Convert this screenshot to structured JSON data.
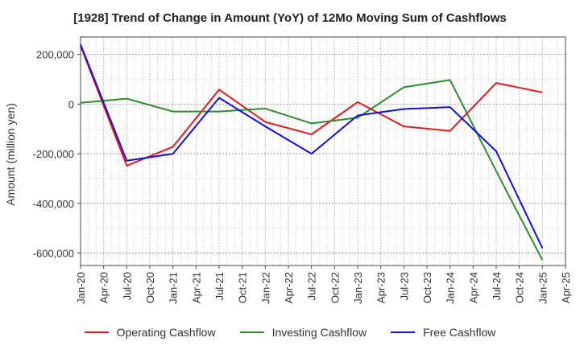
{
  "chart_data": {
    "type": "line",
    "title": "[1928]  Trend of Change in Amount (YoY) of 12Mo Moving Sum of Cashflows",
    "ylabel": "Amount (million yen)",
    "xlabel": "",
    "ylim": [
      -650000,
      270000
    ],
    "yticks": [
      200000,
      0,
      -200000,
      -400000,
      -600000
    ],
    "ytick_labels": [
      "200,000",
      "0",
      "-200,000",
      "-400,000",
      "-600,000"
    ],
    "x_tick_labels": [
      "Jan-20",
      "Apr-20",
      "Jul-20",
      "Oct-20",
      "Jan-21",
      "Apr-21",
      "Jul-21",
      "Oct-21",
      "Jan-22",
      "Apr-22",
      "Jul-22",
      "Oct-22",
      "Jan-23",
      "Apr-23",
      "Jul-23",
      "Oct-23",
      "Jan-24",
      "Apr-24",
      "Jul-24",
      "Oct-24",
      "Jan-25",
      "Apr-25"
    ],
    "categories": [
      "Jan-20",
      "Jul-20",
      "Jan-21",
      "Jul-21",
      "Jan-22",
      "Jul-22",
      "Jan-23",
      "Jul-23",
      "Jan-24",
      "Jul-24",
      "Jan-25"
    ],
    "series": [
      {
        "name": "Operating Cashflow",
        "color": "#e41a1c",
        "values": [
          235000,
          -248000,
          -172000,
          58000,
          -72000,
          -122000,
          8000,
          -90000,
          -108000,
          85000,
          47000
        ]
      },
      {
        "name": "Investing Cashflow",
        "color": "#2e8b2e",
        "values": [
          5000,
          22000,
          -30000,
          -30000,
          -18000,
          -78000,
          -55000,
          68000,
          97000,
          -270000,
          -628000
        ]
      },
      {
        "name": "Free Cashflow",
        "color": "#1010e0",
        "values": [
          240000,
          -228000,
          -200000,
          25000,
          -90000,
          -200000,
          -46000,
          -20000,
          -12000,
          -190000,
          -580000
        ]
      }
    ],
    "grid": true,
    "legend_position": "bottom"
  }
}
